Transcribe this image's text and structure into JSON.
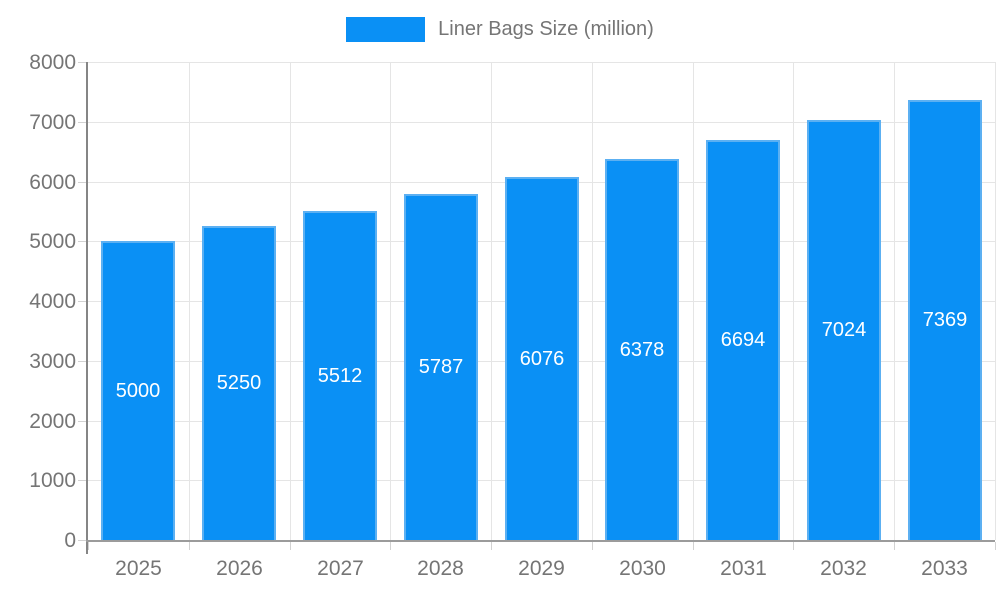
{
  "legend": {
    "label": "Liner Bags Size (million)"
  },
  "colors": {
    "bar_fill": "#0a90f5",
    "bar_border": "#5cb0f2",
    "bar_label_text": "#ffffff",
    "axis_line_y": "#858585",
    "axis_line_x": "#9b9b9b",
    "grid_line": "#e5e5e5",
    "tick_mark": "#d2d2d2",
    "tick_text": "#757575",
    "background": "#ffffff"
  },
  "chart_data": {
    "type": "bar",
    "title": "",
    "categories": [
      "2025",
      "2026",
      "2027",
      "2028",
      "2029",
      "2030",
      "2031",
      "2032",
      "2033"
    ],
    "series": [
      {
        "name": "Liner Bags Size (million)",
        "values": [
          5000,
          5250,
          5512,
          5787,
          6076,
          6378,
          6694,
          7024,
          7369
        ]
      }
    ],
    "xlabel": "",
    "ylabel": "",
    "ylim": [
      0,
      8000
    ],
    "ytick_step": 1000,
    "grid": true,
    "legend_position": "top",
    "bar_value_labels": "inside-center"
  }
}
